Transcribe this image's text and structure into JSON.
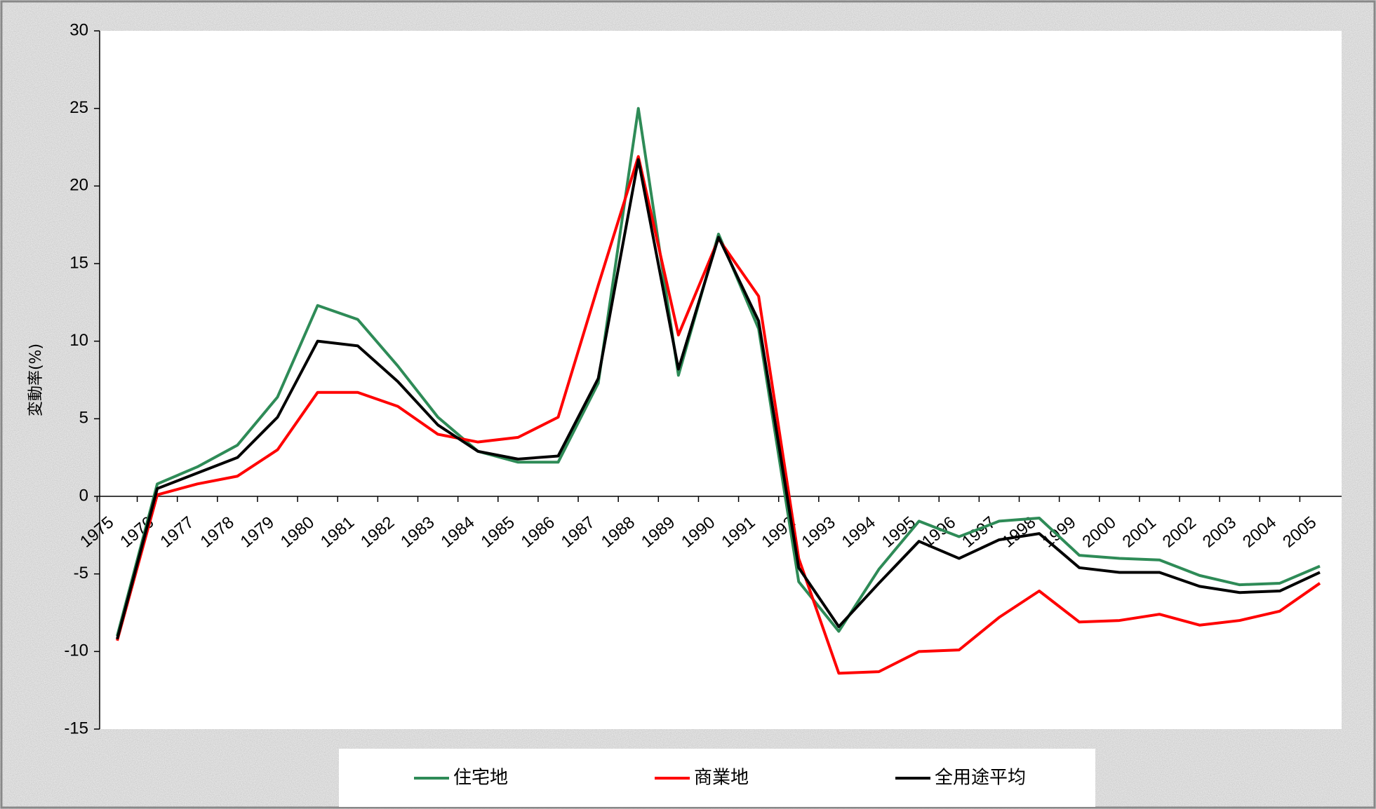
{
  "chart_data": {
    "type": "line",
    "y_label": "変動率(%)",
    "categories": [
      "1975",
      "1976",
      "1977",
      "1978",
      "1979",
      "1980",
      "1981",
      "1982",
      "1983",
      "1984",
      "1985",
      "1986",
      "1987",
      "1988",
      "1989",
      "1990",
      "1991",
      "1992",
      "1993",
      "1994",
      "1995",
      "1996",
      "1997",
      "1998",
      "1999",
      "2000",
      "2001",
      "2002",
      "2003",
      "2004",
      "2005"
    ],
    "series": [
      {
        "name": "住宅地",
        "color": "#2e8b57",
        "values": [
          -9.0,
          0.8,
          1.9,
          3.3,
          6.4,
          12.3,
          11.4,
          8.4,
          5.1,
          2.9,
          2.2,
          2.2,
          7.3,
          25.0,
          7.8,
          16.9,
          10.8,
          -5.5,
          -8.7,
          -4.7,
          -1.6,
          -2.6,
          -1.6,
          -1.4,
          -3.8,
          -4.0,
          -4.1,
          -5.1,
          -5.7,
          -5.6,
          -4.5
        ]
      },
      {
        "name": "商業地",
        "color": "#ff0000",
        "values": [
          -9.3,
          0.1,
          0.8,
          1.3,
          3.0,
          6.7,
          6.7,
          5.8,
          4.0,
          3.5,
          3.8,
          5.1,
          13.6,
          21.9,
          10.4,
          16.6,
          12.9,
          -4.0,
          -11.4,
          -11.3,
          -10.0,
          -9.9,
          -7.8,
          -6.1,
          -8.1,
          -8.0,
          -7.6,
          -8.3,
          -8.0,
          -7.4,
          -5.6
        ]
      },
      {
        "name": "全用途平均",
        "color": "#000000",
        "values": [
          -9.2,
          0.5,
          1.5,
          2.5,
          5.1,
          10.0,
          9.7,
          7.4,
          4.6,
          2.9,
          2.4,
          2.6,
          7.6,
          21.7,
          8.2,
          16.7,
          11.3,
          -4.6,
          -8.4,
          -5.6,
          -2.9,
          -4.0,
          -2.8,
          -2.4,
          -4.6,
          -4.9,
          -4.9,
          -5.8,
          -6.2,
          -6.1,
          -4.9
        ]
      }
    ],
    "ylim": [
      -15,
      30
    ],
    "yticks": [
      -15,
      -10,
      -5,
      0,
      5,
      10,
      15,
      20,
      25,
      30
    ]
  }
}
